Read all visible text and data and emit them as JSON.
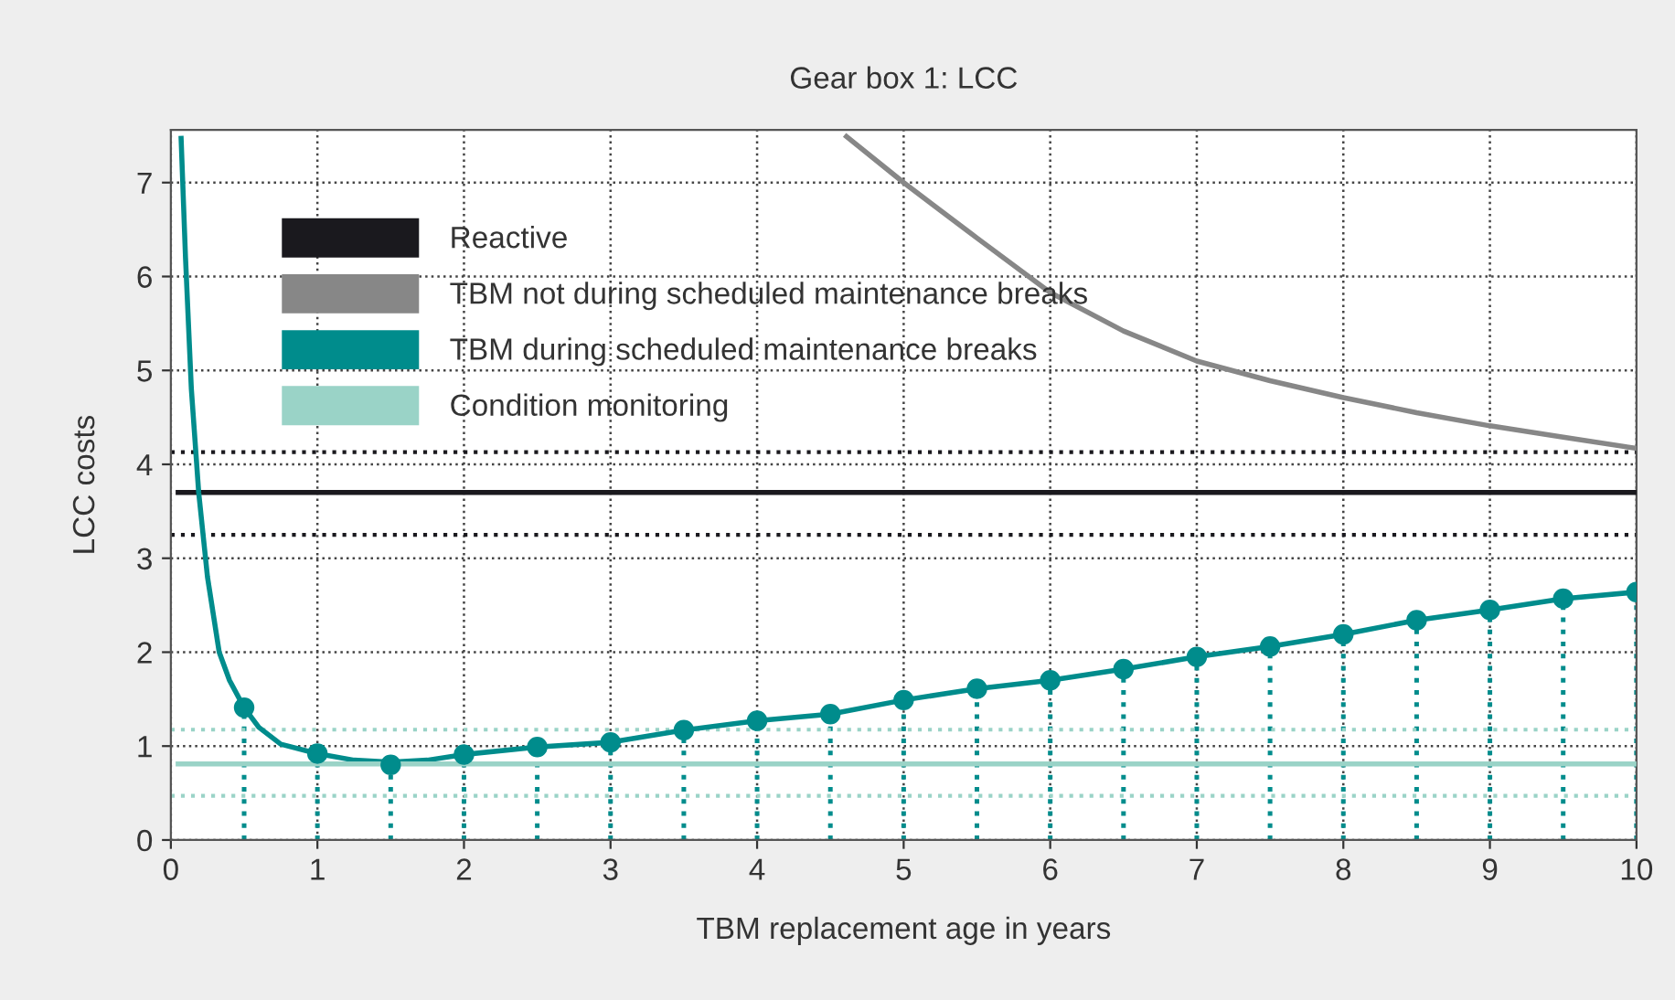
{
  "chart_data": {
    "type": "line",
    "title": "Gear box 1: LCC",
    "xlabel": "TBM replacement age in years",
    "ylabel": "LCC costs",
    "xlim": [
      0,
      10
    ],
    "ylim": [
      0,
      7.56
    ],
    "xticks": [
      0,
      1,
      2,
      3,
      4,
      5,
      6,
      7,
      8,
      9,
      10
    ],
    "yticks": [
      0,
      1,
      2,
      3,
      4,
      5,
      6,
      7
    ],
    "grid": true,
    "legend": "top left",
    "series": [
      {
        "name": "Reactive",
        "color": "#1a191e",
        "x": [
          0.05,
          10
        ],
        "values": [
          3.7,
          3.7
        ]
      },
      {
        "name": "TBM not during scheduled maintenance breaks",
        "color": "#878787",
        "x": [
          4.61,
          5,
          5.5,
          6,
          6.5,
          7,
          7.5,
          8,
          8.5,
          9,
          9.5,
          10
        ],
        "values": [
          7.49,
          7.0,
          6.41,
          5.83,
          5.42,
          5.1,
          4.89,
          4.71,
          4.55,
          4.41,
          4.29,
          4.17
        ]
      },
      {
        "name": "TBM during scheduled maintenance breaks",
        "color": "#008c8c",
        "x": [
          0.07,
          0.1,
          0.14,
          0.19,
          0.25,
          0.33,
          0.4,
          0.5,
          0.6,
          0.75,
          1,
          1.25,
          1.5,
          1.75,
          2,
          2.5,
          3,
          3.5,
          4,
          4.5,
          5,
          5.5,
          6,
          6.5,
          7,
          7.5,
          8,
          8.5,
          9,
          9.5,
          10
        ],
        "values": [
          7.47,
          6.2,
          4.8,
          3.7,
          2.8,
          2.0,
          1.7,
          1.41,
          1.2,
          1.02,
          0.92,
          0.85,
          0.83,
          0.85,
          0.91,
          0.99,
          1.04,
          1.17,
          1.27,
          1.34,
          1.49,
          1.61,
          1.7,
          1.82,
          1.95,
          2.06,
          2.19,
          2.34,
          2.45,
          2.57,
          2.64
        ]
      },
      {
        "name": "Condition monitoring",
        "color": "#9ad3c7",
        "x": [
          0.05,
          10
        ],
        "values": [
          0.81,
          0.81
        ]
      },
      {
        "color": "#008c8c",
        "type": "scatter",
        "marker": "circle",
        "x": [
          0.5,
          1,
          1.5,
          2,
          2.5,
          3,
          3.5,
          4,
          4.5,
          5,
          5.5,
          6,
          6.5,
          7,
          7.5,
          8,
          8.5,
          9,
          9.5,
          10
        ],
        "values": [
          1.41,
          0.92,
          0.8,
          0.91,
          0.99,
          1.04,
          1.17,
          1.27,
          1.34,
          1.49,
          1.61,
          1.7,
          1.82,
          1.95,
          2.06,
          2.19,
          2.34,
          2.45,
          2.57,
          2.64
        ],
        "errors": [
          [
            0,
            1.41
          ],
          [
            0,
            0.92
          ],
          [
            0,
            0.8
          ],
          [
            0,
            0.91
          ],
          [
            0,
            0.99
          ],
          [
            0,
            1.04
          ],
          [
            0,
            1.17
          ],
          [
            0,
            1.27
          ],
          [
            0,
            1.34
          ],
          [
            0,
            1.49
          ],
          [
            0,
            1.61
          ],
          [
            0,
            1.7
          ],
          [
            0,
            1.82
          ],
          [
            0,
            1.95
          ],
          [
            0,
            2.06
          ],
          [
            0,
            2.19
          ],
          [
            0,
            2.34
          ],
          [
            0,
            2.45
          ],
          [
            0,
            2.57
          ],
          [
            0,
            2.64
          ]
        ],
        "line_style": "dotted"
      }
    ],
    "ref_lines": [
      {
        "axis": "y",
        "value": 4.13,
        "color": "#1a191e",
        "line_style": "dotted"
      },
      {
        "axis": "y",
        "value": 3.25,
        "color": "#1a191e",
        "line_style": "dotted"
      },
      {
        "axis": "y",
        "value": 1.175,
        "color": "#9ad3c7",
        "line_style": "dotted"
      },
      {
        "axis": "y",
        "value": 0.47,
        "color": "#9ad3c7",
        "line_style": "dotted"
      }
    ]
  }
}
